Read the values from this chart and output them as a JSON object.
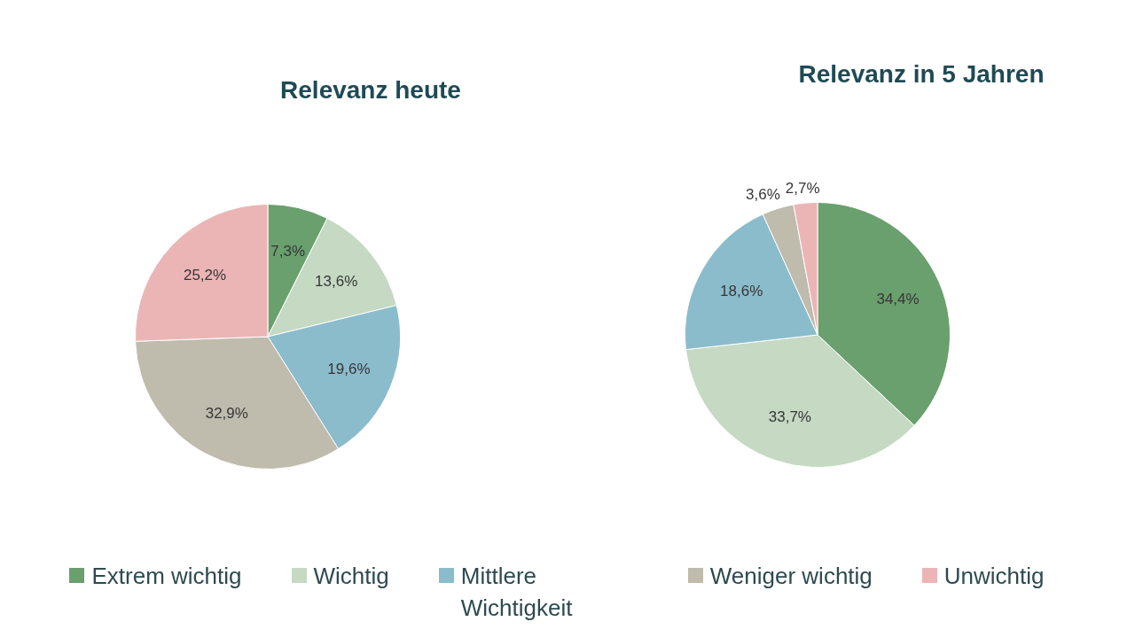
{
  "chart_data": {
    "type": "pie",
    "categories": [
      "Extrem wichtig",
      "Wichtig",
      "Mittlere Wichtigkeit",
      "Weniger wichtig",
      "Unwichtig"
    ],
    "colors": [
      "#6a9f6e",
      "#c5d9c3",
      "#8bbccc",
      "#bfbbad",
      "#ebb5b6"
    ],
    "series": [
      {
        "name": "Relevanz heute",
        "values": [
          7.3,
          13.6,
          19.6,
          32.9,
          25.2
        ],
        "value_labels": [
          "7,3%",
          "13,6%",
          "19,6%",
          "32,9%",
          "25,2%"
        ]
      },
      {
        "name": "Relevanz in 5 Jahren",
        "values": [
          34.4,
          33.7,
          18.6,
          3.6,
          2.7
        ],
        "value_labels": [
          "34,4%",
          "33,7%",
          "18,6%",
          "3,6%",
          "2,7%"
        ]
      }
    ],
    "legend": "bottom"
  }
}
